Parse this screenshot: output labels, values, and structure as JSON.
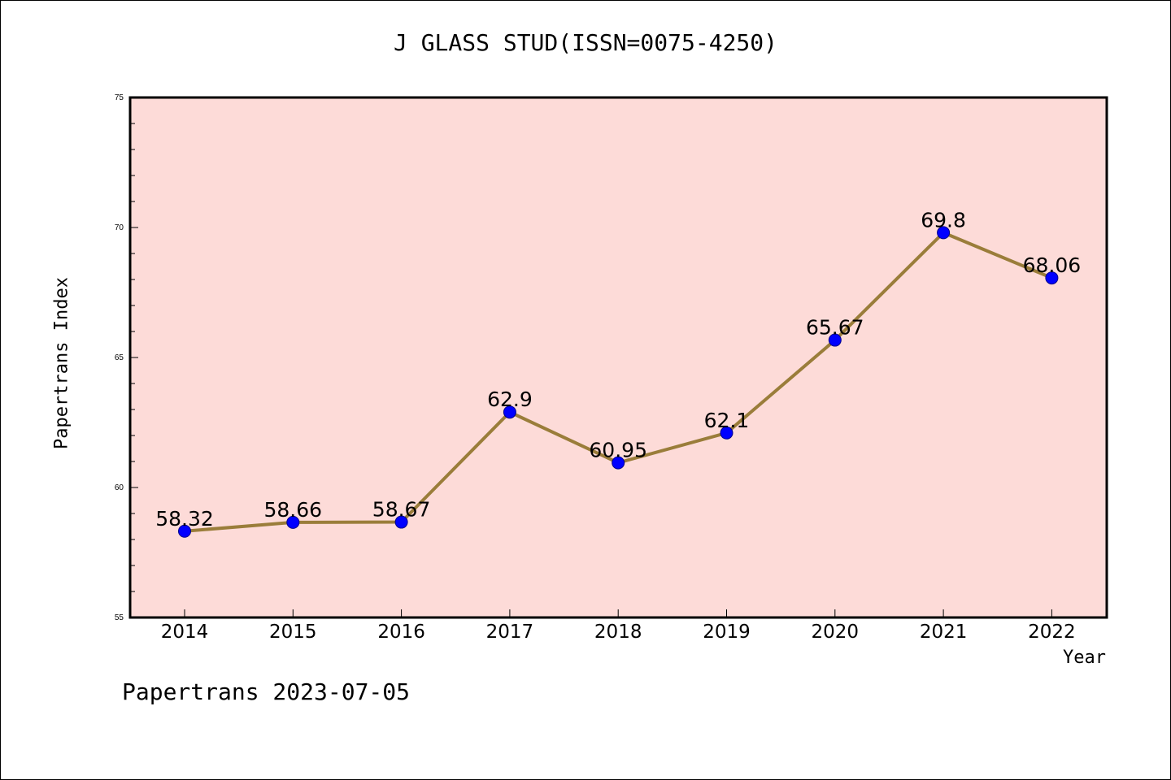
{
  "chart_data": {
    "type": "line",
    "title": "J GLASS STUD(ISSN=0075-4250)",
    "xlabel": "Year",
    "ylabel": "Papertrans Index",
    "categories": [
      "2014",
      "2015",
      "2016",
      "2017",
      "2018",
      "2019",
      "2020",
      "2021",
      "2022"
    ],
    "values": [
      58.32,
      58.66,
      58.67,
      62.9,
      60.95,
      62.1,
      65.67,
      69.8,
      68.06
    ],
    "data_labels": [
      "58.32",
      "58.66",
      "58.67",
      "62.9",
      "60.95",
      "62.1",
      "65.67",
      "69.8",
      "68.06"
    ],
    "ylim": [
      55,
      75
    ],
    "yticks": [
      "55",
      "60",
      "65",
      "70",
      "75"
    ],
    "grid": false,
    "colors": {
      "plot_background": "#fddbd8",
      "line": "#9a7d3a",
      "marker": "#0000ff"
    }
  },
  "footer": "Papertrans 2023-07-05"
}
